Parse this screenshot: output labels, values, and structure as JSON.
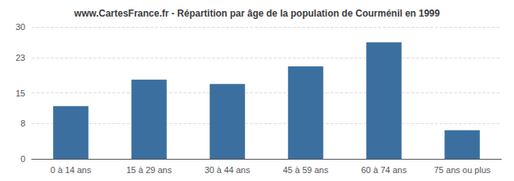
{
  "chart_data": {
    "type": "bar",
    "title": "www.CartesFrance.fr - Répartition par âge de la population de Courménil en 1999",
    "categories": [
      "0 à 14 ans",
      "15 à 29 ans",
      "30 à 44 ans",
      "45 à 59 ans",
      "60 à 74 ans",
      "75 ans ou plus"
    ],
    "values": [
      12,
      18,
      17,
      21,
      26.5,
      6.5
    ],
    "color": "#3a6f9f",
    "ylim": [
      0,
      30
    ],
    "yticks": [
      0,
      8,
      15,
      23,
      30
    ],
    "grid": true
  }
}
